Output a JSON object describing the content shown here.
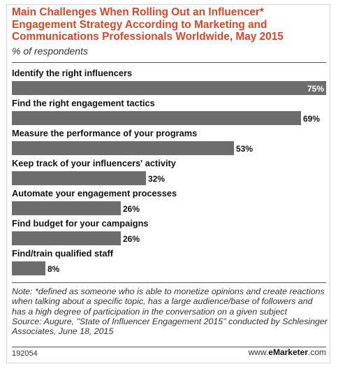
{
  "header": {
    "title": "Main Challenges When Rolling Out an Influencer* Engagement Strategy According to Marketing and Communications Professionals Worldwide, May 2015",
    "subtitle": "% of respondents"
  },
  "chart_data": {
    "type": "bar",
    "orientation": "horizontal",
    "title": "Main Challenges When Rolling Out an Influencer* Engagement Strategy According to Marketing and Communications Professionals Worldwide, May 2015",
    "subtitle": "% of respondents",
    "categories": [
      "Identify the right influencers",
      "Find the right engagement tactics",
      "Measure the performance of your programs",
      "Keep track of your influencers' activity",
      "Automate your engagement processes",
      "Find budget for your campaigns",
      "Find/train qualified staff"
    ],
    "values": [
      75,
      69,
      53,
      32,
      26,
      26,
      8
    ],
    "value_labels": [
      "75%",
      "69%",
      "53%",
      "32%",
      "26%",
      "26%",
      "8%"
    ],
    "xlim": [
      0,
      75
    ],
    "unit": "%",
    "bar_color": "#6d6d6d",
    "grid": false,
    "legend": "none"
  },
  "footer": {
    "note": "Note: *defined as someone who is able to monetize opinions and create reactions when talking about a specific topic, has a large audience/base of followers and has a high degree of participation in the conversation on a given subject",
    "source": "Source: Augure, \"State of Influencer Engagement 2015\" conducted by Schlesinger Associates, June 18, 2015",
    "chart_id": "192054",
    "brand_prefix": "www.",
    "brand_name": "eMarketer",
    "brand_suffix": ".com"
  },
  "colors": {
    "title": "#d9472b",
    "bar": "#6d6d6d",
    "text": "#111111"
  }
}
